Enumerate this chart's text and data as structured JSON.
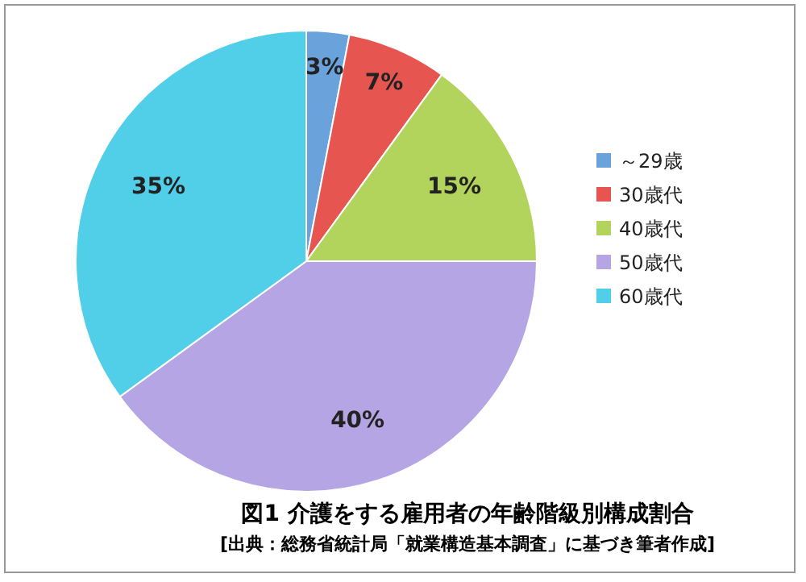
{
  "chart_data": {
    "type": "pie",
    "title": "図1 介護をする雇用者の年齢階級別構成割合",
    "subtitle": "[出典：総務省統計局「就業構造基本調査」に基づき筆者作成]",
    "categories": [
      "～29歳",
      "30歳代",
      "40歳代",
      "50歳代",
      "60歳代"
    ],
    "values": [
      3,
      7,
      15,
      40,
      35
    ],
    "value_labels": [
      "3%",
      "7%",
      "15%",
      "40%",
      "35%"
    ],
    "colors": [
      "#6aa3dc",
      "#e6554f",
      "#b3d45c",
      "#b6a5e4",
      "#52cfe8"
    ],
    "legend": "right"
  }
}
